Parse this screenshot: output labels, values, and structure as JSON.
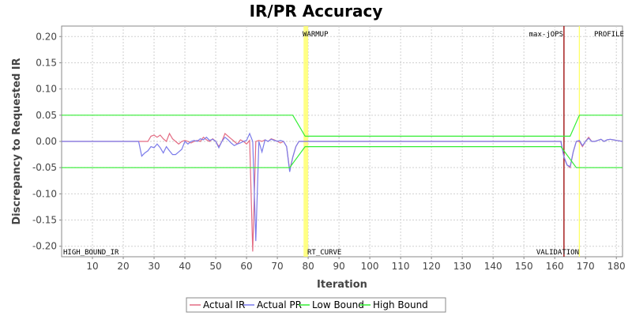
{
  "chart_data": {
    "type": "line",
    "title": "IR/PR Accuracy",
    "xlabel": "Iteration",
    "ylabel": "Discrepancy to Requested IR",
    "xlim": [
      0,
      182
    ],
    "ylim": [
      -0.22,
      0.22
    ],
    "x_ticks": [
      10,
      20,
      30,
      40,
      50,
      60,
      70,
      80,
      90,
      100,
      110,
      120,
      130,
      140,
      150,
      160,
      170,
      180
    ],
    "y_ticks": [
      0.2,
      0.15,
      0.1,
      0.05,
      0.0,
      -0.05,
      -0.1,
      -0.15,
      -0.2
    ],
    "y_tick_labels": [
      "0.20",
      "0.15",
      "0.10",
      "0.05",
      "0.00",
      "-0.05",
      "-0.10",
      "-0.15",
      "-0.20"
    ],
    "grid": true,
    "legend_position": "bottom",
    "series": [
      {
        "name": "Actual IR",
        "color": "#e36b82",
        "x": [
          0,
          26,
          27,
          28,
          29,
          30,
          31,
          32,
          33,
          34,
          35,
          36,
          37,
          38,
          39,
          40,
          41,
          42,
          43,
          44,
          45,
          46,
          47,
          48,
          49,
          50,
          51,
          52,
          53,
          54,
          55,
          56,
          57,
          58,
          59,
          60,
          61,
          62,
          63,
          64,
          65,
          66,
          67,
          68,
          69,
          70,
          71,
          72,
          73,
          74,
          75,
          76,
          77,
          78,
          79,
          80,
          100,
          120,
          140,
          160,
          161,
          162,
          163,
          164,
          165,
          166,
          167,
          168,
          169,
          170,
          171,
          172,
          173,
          174,
          175,
          176,
          177,
          178,
          179,
          180,
          181,
          182
        ],
        "y": [
          0,
          0,
          0,
          0,
          0.01,
          0.012,
          0.008,
          0.012,
          0.005,
          0.0,
          0.015,
          0.005,
          0.0,
          -0.005,
          0.0,
          0.002,
          0.0,
          -0.003,
          0.0,
          0.002,
          0.0,
          0.008,
          0.003,
          0.0,
          0.005,
          0.0,
          -0.01,
          0.0,
          0.015,
          0.01,
          0.005,
          0.0,
          -0.005,
          0.003,
          0.0,
          -0.005,
          0.002,
          -0.21,
          0.0,
          0.002,
          0.0,
          0.003,
          0.0,
          0.005,
          0.003,
          0.0,
          -0.003,
          0.0,
          -0.01,
          -0.055,
          -0.03,
          -0.01,
          0.0,
          0.0,
          0.0,
          0.0,
          0.0,
          0.0,
          0.0,
          0.0,
          0.0,
          0.0,
          -0.03,
          -0.045,
          -0.05,
          -0.02,
          0.0,
          0.0,
          -0.01,
          0.0,
          0.008,
          0.0,
          0.0,
          0.002,
          0.004,
          0.0,
          0.003,
          0.004,
          0.003,
          0.002,
          0.001,
          0.0
        ]
      },
      {
        "name": "Actual PR",
        "color": "#7b7bea",
        "x": [
          0,
          25,
          26,
          27,
          28,
          29,
          30,
          31,
          32,
          33,
          34,
          35,
          36,
          37,
          38,
          39,
          40,
          41,
          42,
          43,
          44,
          45,
          46,
          47,
          48,
          49,
          50,
          51,
          52,
          53,
          54,
          55,
          56,
          57,
          58,
          59,
          60,
          61,
          62,
          63,
          64,
          65,
          66,
          67,
          68,
          69,
          70,
          71,
          72,
          73,
          74,
          75,
          76,
          77,
          78,
          79,
          80,
          100,
          120,
          140,
          160,
          161,
          162,
          163,
          164,
          165,
          166,
          167,
          168,
          169,
          170,
          171,
          172,
          173,
          174,
          175,
          176,
          177,
          178,
          179,
          180,
          181,
          182
        ],
        "y": [
          0,
          0,
          -0.028,
          -0.022,
          -0.018,
          -0.01,
          -0.012,
          -0.005,
          -0.012,
          -0.022,
          -0.01,
          -0.018,
          -0.025,
          -0.025,
          -0.02,
          -0.015,
          0.0,
          -0.005,
          0.0,
          0.002,
          0.0,
          0.005,
          0.003,
          0.008,
          0.002,
          0.004,
          0.0,
          -0.012,
          0.0,
          0.008,
          0.003,
          -0.003,
          -0.008,
          -0.005,
          -0.003,
          0.0,
          0.002,
          0.015,
          0.0,
          -0.19,
          0.0,
          -0.02,
          0.003,
          0.0,
          0.004,
          0.002,
          0.0,
          0.002,
          0.0,
          -0.01,
          -0.058,
          -0.03,
          -0.01,
          0.0,
          0.0,
          0.0,
          0.0,
          0.0,
          0.0,
          0.0,
          0.0,
          0.0,
          0.0,
          -0.03,
          -0.045,
          -0.048,
          -0.02,
          0.0,
          0.002,
          -0.008,
          0.0,
          0.006,
          0.0,
          0.0,
          0.002,
          0.004,
          0.0,
          0.003,
          0.004,
          0.003,
          0.002,
          0.001,
          0.0
        ]
      },
      {
        "name": "Low Bound",
        "color": "#33ee33",
        "x": [
          0,
          74,
          79,
          162,
          167,
          182
        ],
        "y": [
          -0.05,
          -0.05,
          -0.01,
          -0.01,
          -0.05,
          -0.05
        ]
      },
      {
        "name": "High Bound",
        "color": "#33ee33",
        "x": [
          0,
          75,
          79,
          165,
          168,
          182
        ],
        "y": [
          0.05,
          0.05,
          0.01,
          0.01,
          0.05,
          0.05
        ]
      }
    ],
    "markers": [
      {
        "x": 79,
        "color": "#ffff66",
        "band": [
          78.5,
          80
        ]
      },
      {
        "x": 163,
        "color": "#990000"
      },
      {
        "x": 168,
        "color": "#ffff66"
      }
    ],
    "annotations": {
      "warmup": "WARMUP",
      "max_jops": "max-jOPS",
      "profile": "PROFILE",
      "high_bound_ir": "HIGH_BOUND_IR",
      "rt_curve": "RT_CURVE",
      "validation": "VALIDATION"
    }
  }
}
